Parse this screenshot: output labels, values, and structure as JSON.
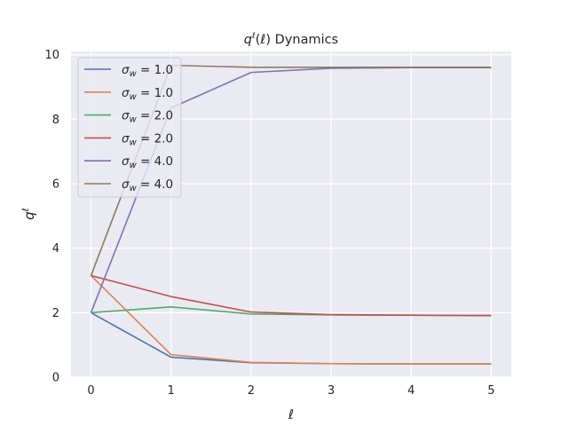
{
  "chart_data": {
    "type": "line",
    "title": "q^ℓ(ℓ) Dynamics",
    "xlabel": "ℓ",
    "ylabel": "q^ℓ",
    "x": [
      0,
      1,
      2,
      3,
      4,
      5
    ],
    "xticks": [
      "0",
      "1",
      "2",
      "3",
      "4",
      "5"
    ],
    "yticks": [
      "0",
      "2",
      "4",
      "6",
      "8",
      "10"
    ],
    "xlim": [
      -0.25,
      5.25
    ],
    "ylim": [
      0,
      10.1
    ],
    "grid": true,
    "legend_position": "top-left",
    "series": [
      {
        "name": "σ_w = 1.0",
        "color": "#4c72b0",
        "values": [
          2.0,
          0.62,
          0.45,
          0.42,
          0.41,
          0.41
        ]
      },
      {
        "name": "σ_w = 1.0",
        "color": "#dd8452",
        "values": [
          3.15,
          0.7,
          0.46,
          0.42,
          0.41,
          0.41
        ]
      },
      {
        "name": "σ_w = 2.0",
        "color": "#55a868",
        "values": [
          2.0,
          2.18,
          1.96,
          1.93,
          1.92,
          1.91
        ]
      },
      {
        "name": "σ_w = 2.0",
        "color": "#c44e52",
        "values": [
          3.15,
          2.5,
          2.02,
          1.94,
          1.92,
          1.91
        ]
      },
      {
        "name": "σ_w = 4.0",
        "color": "#8172b3",
        "values": [
          2.0,
          8.35,
          9.45,
          9.58,
          9.6,
          9.6
        ]
      },
      {
        "name": "σ_w = 4.0",
        "color": "#937860",
        "values": [
          3.15,
          9.67,
          9.61,
          9.61,
          9.61,
          9.61
        ]
      }
    ]
  }
}
